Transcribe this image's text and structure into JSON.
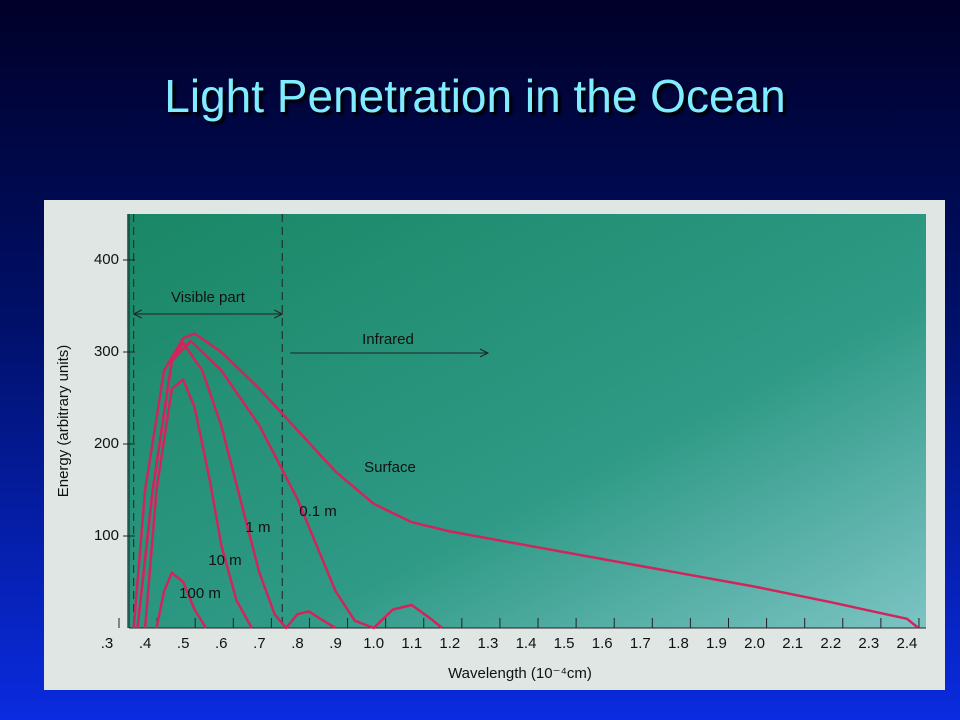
{
  "title": "Light Penetration in the Ocean",
  "chart_data": {
    "type": "line",
    "xlabel": "Wavelength (10⁻⁴cm)",
    "ylabel": "Energy (arbitrary units)",
    "xlim": [
      0.3,
      2.45
    ],
    "ylim": [
      0,
      450
    ],
    "xticks": [
      {
        "value": 0.3,
        "label": ".3"
      },
      {
        "value": 0.4,
        "label": ".4"
      },
      {
        "value": 0.5,
        "label": ".5"
      },
      {
        "value": 0.6,
        "label": ".6"
      },
      {
        "value": 0.7,
        "label": ".7"
      },
      {
        "value": 0.8,
        "label": ".8"
      },
      {
        "value": 0.9,
        "label": ".9"
      },
      {
        "value": 1,
        "label": "1.0"
      },
      1.1,
      1.2,
      1.3,
      1.4,
      1.5,
      1.6,
      1.7,
      1.8,
      1.9,
      {
        "value": 2,
        "label": "2.0"
      },
      2.1,
      2.2,
      2.3,
      2.4
    ],
    "yticks": [
      100,
      200,
      300,
      400
    ],
    "annotations": [
      {
        "text": "Visible part",
        "x": [
          0.37,
          0.76
        ]
      },
      {
        "text": "Infrared",
        "x": [
          0.76,
          1.3
        ]
      }
    ],
    "series": [
      {
        "name": "Surface",
        "color": "#d2245c",
        "x": [
          0.37,
          0.4,
          0.45,
          0.5,
          0.53,
          0.6,
          0.7,
          0.8,
          0.9,
          1.0,
          1.1,
          1.2,
          1.4,
          1.6,
          1.8,
          2.0,
          2.2,
          2.4,
          2.43
        ],
        "values": [
          0,
          150,
          280,
          315,
          320,
          300,
          260,
          215,
          170,
          135,
          115,
          105,
          90,
          75,
          60,
          45,
          28,
          10,
          0
        ]
      },
      {
        "name": "0.1 m",
        "color": "#d2245c",
        "x": [
          0.38,
          0.42,
          0.47,
          0.52,
          0.6,
          0.7,
          0.8,
          0.85,
          0.9,
          0.95,
          1.0,
          1.05,
          1.1,
          1.15,
          1.18
        ],
        "values": [
          0,
          150,
          290,
          312,
          280,
          220,
          140,
          90,
          40,
          8,
          0,
          20,
          25,
          10,
          0
        ]
      },
      {
        "name": "1 m",
        "color": "#d2245c",
        "x": [
          0.38,
          0.42,
          0.47,
          0.5,
          0.55,
          0.6,
          0.65,
          0.7,
          0.74,
          0.77,
          0.8,
          0.83,
          0.86,
          0.9
        ],
        "values": [
          0,
          150,
          290,
          310,
          280,
          220,
          140,
          60,
          15,
          0,
          15,
          18,
          10,
          0
        ]
      },
      {
        "name": "10 m",
        "color": "#d2245c",
        "x": [
          0.4,
          0.43,
          0.47,
          0.5,
          0.53,
          0.57,
          0.6,
          0.64,
          0.68
        ],
        "values": [
          0,
          150,
          260,
          270,
          240,
          160,
          90,
          30,
          0
        ]
      },
      {
        "name": "100 m",
        "color": "#d2245c",
        "x": [
          0.43,
          0.45,
          0.47,
          0.5,
          0.53,
          0.56
        ],
        "values": [
          0,
          40,
          60,
          50,
          20,
          0
        ]
      }
    ]
  }
}
